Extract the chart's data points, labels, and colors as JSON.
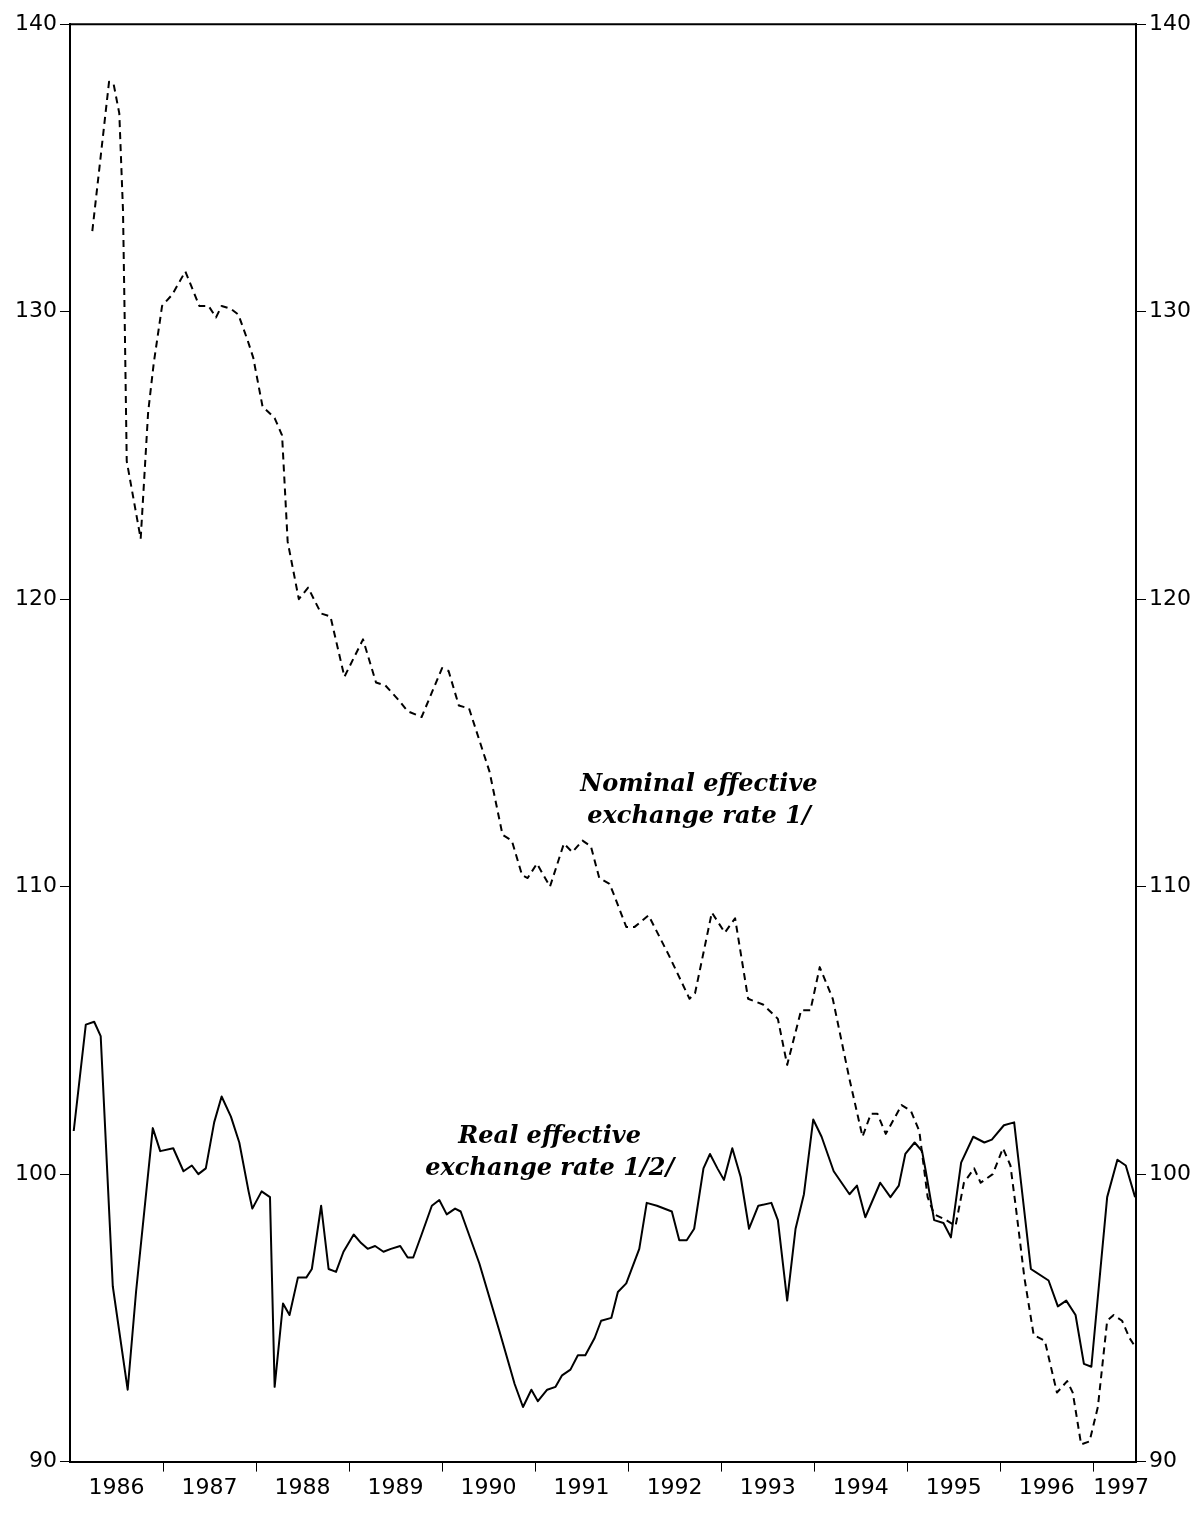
{
  "chart_data": {
    "type": "line",
    "xlim": [
      1986,
      1997.46
    ],
    "xticks": [
      {
        "value": 1986.5,
        "label": "1986"
      },
      {
        "value": 1987,
        "label": null
      },
      {
        "value": 1987.5,
        "label": "1987"
      },
      {
        "value": 1988,
        "label": null
      },
      {
        "value": 1988.5,
        "label": "1988"
      },
      {
        "value": 1989,
        "label": null
      },
      {
        "value": 1989.5,
        "label": "1989"
      },
      {
        "value": 1990,
        "label": null
      },
      {
        "value": 1990.5,
        "label": "1990"
      },
      {
        "value": 1991,
        "label": null
      },
      {
        "value": 1991.5,
        "label": "1991"
      },
      {
        "value": 1992,
        "label": null
      },
      {
        "value": 1992.5,
        "label": "1992"
      },
      {
        "value": 1993,
        "label": null
      },
      {
        "value": 1993.5,
        "label": "1993"
      },
      {
        "value": 1994,
        "label": null
      },
      {
        "value": 1994.5,
        "label": "1994"
      },
      {
        "value": 1995,
        "label": null
      },
      {
        "value": 1995.5,
        "label": "1995"
      },
      {
        "value": 1996,
        "label": null
      },
      {
        "value": 1996.5,
        "label": "1996"
      },
      {
        "value": 1997,
        "label": null
      },
      {
        "value": 1997.3,
        "label": "1997"
      }
    ],
    "ylim": [
      90,
      140
    ],
    "yticks": [
      90,
      100,
      110,
      120,
      130,
      140
    ],
    "y2lim": [
      90,
      140
    ],
    "y2ticks": [
      90,
      100,
      110,
      120,
      130,
      140
    ],
    "grid": false,
    "legend": false,
    "marker": "none",
    "series": [
      {
        "name": "Nominal effective exchange rate 1/",
        "color": "#000000",
        "line_style": "dashed",
        "x": [
          1986.24,
          1986.42,
          1986.47,
          1986.53,
          1986.57,
          1986.59,
          1986.61,
          1986.76,
          1986.84,
          1986.9,
          1986.99,
          1987.1,
          1987.24,
          1987.39,
          1987.49,
          1987.57,
          1987.63,
          1987.73,
          1987.81,
          1987.91,
          1987.97,
          1988.07,
          1988.2,
          1988.28,
          1988.34,
          1988.46,
          1988.56,
          1988.7,
          1988.8,
          1988.95,
          1989.15,
          1989.29,
          1989.39,
          1989.53,
          1989.63,
          1989.78,
          1990.0,
          1990.07,
          1990.18,
          1990.29,
          1990.51,
          1990.65,
          1990.75,
          1990.86,
          1990.92,
          1991.02,
          1991.16,
          1991.31,
          1991.4,
          1991.51,
          1991.6,
          1991.69,
          1991.8,
          1991.85,
          1991.98,
          1992.07,
          1992.22,
          1992.44,
          1992.66,
          1992.72,
          1992.9,
          1993.04,
          1993.15,
          1993.29,
          1993.45,
          1993.61,
          1993.71,
          1993.86,
          1993.96,
          1994.06,
          1994.2,
          1994.38,
          1994.52,
          1994.61,
          1994.68,
          1994.77,
          1994.94,
          1995.04,
          1995.13,
          1995.22,
          1995.29,
          1995.42,
          1995.52,
          1995.61,
          1995.72,
          1995.79,
          1995.92,
          1996.03,
          1996.11,
          1996.17,
          1996.26,
          1996.36,
          1996.48,
          1996.61,
          1996.72,
          1996.78,
          1996.87,
          1996.96,
          1997.05,
          1997.15,
          1997.22,
          1997.31,
          1997.39,
          1997.45
        ],
        "values": [
          132.8,
          138.0,
          137.9,
          136.9,
          133.5,
          129.3,
          124.8,
          122.1,
          126.5,
          128.2,
          130.2,
          130.6,
          131.4,
          130.2,
          130.2,
          129.8,
          130.2,
          130.1,
          129.9,
          129.0,
          128.4,
          126.7,
          126.3,
          125.7,
          122.0,
          120.0,
          120.4,
          119.5,
          119.4,
          117.3,
          118.6,
          117.1,
          117.0,
          116.5,
          116.1,
          115.9,
          117.6,
          117.5,
          116.3,
          116.2,
          114.0,
          111.8,
          111.6,
          110.4,
          110.3,
          110.8,
          110.0,
          111.5,
          111.2,
          111.6,
          111.4,
          110.3,
          110.1,
          109.7,
          108.6,
          108.6,
          109.0,
          107.6,
          106.1,
          106.3,
          109.1,
          108.4,
          108.9,
          106.1,
          105.9,
          105.4,
          103.8,
          105.7,
          105.7,
          107.2,
          106.1,
          103.3,
          101.3,
          102.1,
          102.1,
          101.4,
          102.4,
          102.2,
          101.5,
          99.2,
          98.6,
          98.4,
          98.2,
          99.7,
          100.2,
          99.7,
          100.0,
          100.9,
          100.3,
          98.8,
          96.4,
          94.4,
          94.2,
          92.4,
          92.8,
          92.4,
          90.6,
          90.7,
          91.9,
          94.9,
          95.1,
          94.9,
          94.3,
          94.0
        ]
      },
      {
        "name": "Real effective exchange rate 1/2/",
        "color": "#000000",
        "line_style": "solid",
        "x": [
          1986.04,
          1986.17,
          1986.26,
          1986.33,
          1986.46,
          1986.62,
          1986.71,
          1986.89,
          1986.97,
          1987.11,
          1987.22,
          1987.31,
          1987.38,
          1987.46,
          1987.55,
          1987.63,
          1987.73,
          1987.82,
          1987.92,
          1987.96,
          1988.06,
          1988.15,
          1988.2,
          1988.29,
          1988.36,
          1988.45,
          1988.54,
          1988.6,
          1988.7,
          1988.78,
          1988.86,
          1988.94,
          1989.05,
          1989.13,
          1989.2,
          1989.28,
          1989.37,
          1989.45,
          1989.55,
          1989.63,
          1989.69,
          1989.78,
          1989.89,
          1989.97,
          1990.05,
          1990.14,
          1990.2,
          1990.4,
          1990.62,
          1990.78,
          1990.87,
          1990.96,
          1991.03,
          1991.13,
          1991.22,
          1991.29,
          1991.38,
          1991.46,
          1991.54,
          1991.64,
          1991.71,
          1991.82,
          1991.89,
          1991.98,
          1992.12,
          1992.2,
          1992.31,
          1992.47,
          1992.55,
          1992.63,
          1992.71,
          1992.81,
          1992.88,
          1992.96,
          1993.03,
          1993.12,
          1993.21,
          1993.3,
          1993.4,
          1993.54,
          1993.61,
          1993.71,
          1993.8,
          1993.89,
          1993.99,
          1994.08,
          1994.21,
          1994.38,
          1994.46,
          1994.55,
          1994.71,
          1994.82,
          1994.91,
          1994.98,
          1995.08,
          1995.16,
          1995.2,
          1995.29,
          1995.39,
          1995.47,
          1995.58,
          1995.71,
          1995.83,
          1995.91,
          1996.04,
          1996.15,
          1996.33,
          1996.52,
          1996.62,
          1996.71,
          1996.81,
          1996.9,
          1996.98,
          1997.15,
          1997.26,
          1997.35,
          1997.45
        ],
        "values": [
          101.5,
          105.2,
          105.3,
          104.8,
          96.1,
          92.5,
          95.9,
          101.6,
          100.8,
          100.9,
          100.1,
          100.3,
          100.0,
          100.2,
          101.8,
          102.7,
          102.0,
          101.1,
          99.4,
          98.8,
          99.4,
          99.2,
          92.6,
          95.5,
          95.1,
          96.4,
          96.4,
          96.7,
          98.9,
          96.7,
          96.6,
          97.3,
          97.9,
          97.6,
          97.4,
          97.5,
          97.3,
          97.4,
          97.5,
          97.1,
          97.1,
          97.9,
          98.9,
          99.1,
          98.6,
          98.8,
          98.7,
          96.9,
          94.5,
          92.7,
          91.9,
          92.5,
          92.1,
          92.5,
          92.6,
          93.0,
          93.2,
          93.7,
          93.7,
          94.3,
          94.9,
          95.0,
          95.9,
          96.2,
          97.4,
          99.0,
          98.9,
          98.7,
          97.7,
          97.7,
          98.1,
          100.2,
          100.7,
          100.2,
          99.8,
          100.9,
          99.9,
          98.1,
          98.9,
          99.0,
          98.4,
          95.6,
          98.1,
          99.3,
          101.9,
          101.3,
          100.1,
          99.3,
          99.6,
          98.5,
          99.7,
          99.2,
          99.6,
          100.7,
          101.1,
          100.8,
          100.1,
          98.4,
          98.3,
          97.8,
          100.4,
          101.3,
          101.1,
          101.2,
          101.7,
          101.8,
          96.7,
          96.3,
          95.4,
          95.6,
          95.1,
          93.4,
          93.3,
          99.2,
          100.5,
          100.3,
          99.2
        ]
      }
    ]
  }
}
